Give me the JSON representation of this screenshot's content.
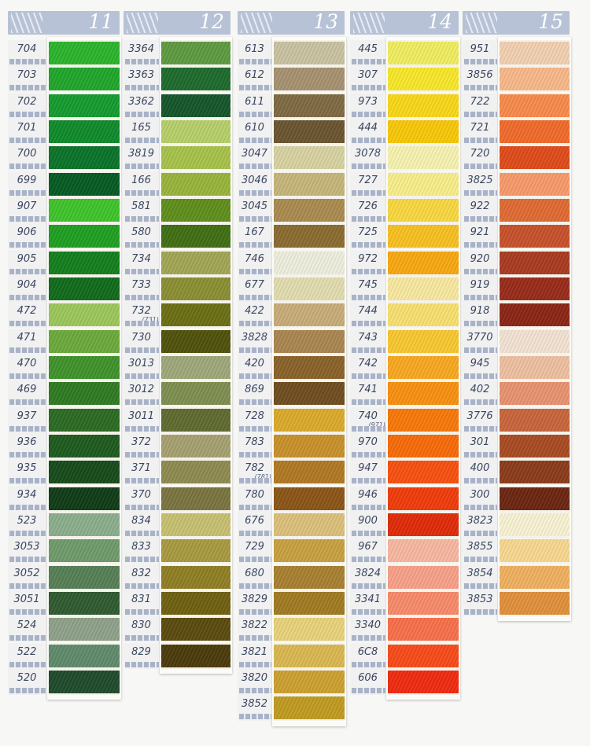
{
  "columns": [
    {
      "header": "11",
      "threads": [
        {
          "code": "704",
          "color": "#2ab52a"
        },
        {
          "code": "703",
          "color": "#1fa62a"
        },
        {
          "code": "702",
          "color": "#149a2e"
        },
        {
          "code": "701",
          "color": "#0f8a2a"
        },
        {
          "code": "700",
          "color": "#0a7328"
        },
        {
          "code": "699",
          "color": "#045a22"
        },
        {
          "code": "907",
          "color": "#3fc42a"
        },
        {
          "code": "906",
          "color": "#1e9f20"
        },
        {
          "code": "905",
          "color": "#127e1c"
        },
        {
          "code": "904",
          "color": "#0f6a1a"
        },
        {
          "code": "472",
          "color": "#9cc75a"
        },
        {
          "code": "471",
          "color": "#6aaa3a"
        },
        {
          "code": "470",
          "color": "#3f922a"
        },
        {
          "code": "469",
          "color": "#2f7a22"
        },
        {
          "code": "937",
          "color": "#2a6a22"
        },
        {
          "code": "936",
          "color": "#1e5a1e"
        },
        {
          "code": "935",
          "color": "#154a1a"
        },
        {
          "code": "934",
          "color": "#0f3c16"
        },
        {
          "code": "523",
          "color": "#8aae8a"
        },
        {
          "code": "3053",
          "color": "#6f9a6a"
        },
        {
          "code": "3052",
          "color": "#557f55"
        },
        {
          "code": "3051",
          "color": "#2f5a30"
        },
        {
          "code": "524",
          "color": "#8ea08a"
        },
        {
          "code": "522",
          "color": "#5f8a6a"
        },
        {
          "code": "520",
          "color": "#1f4a2a"
        }
      ]
    },
    {
      "header": "12",
      "threads": [
        {
          "code": "3364",
          "color": "#5e9a40"
        },
        {
          "code": "3363",
          "color": "#1d6a2c"
        },
        {
          "code": "3362",
          "color": "#14552a"
        },
        {
          "code": "165",
          "color": "#b7cf6a"
        },
        {
          "code": "3819",
          "color": "#a7c24a"
        },
        {
          "code": "166",
          "color": "#98b43a"
        },
        {
          "code": "581",
          "color": "#5e8e1a"
        },
        {
          "code": "580",
          "color": "#3f6e12"
        },
        {
          "code": "734",
          "color": "#a2a654"
        },
        {
          "code": "733",
          "color": "#8a8e32"
        },
        {
          "code": "732",
          "alt": "(731)",
          "color": "#6a6e12"
        },
        {
          "code": "730",
          "color": "#4f520a"
        },
        {
          "code": "3013",
          "color": "#9ea87a"
        },
        {
          "code": "3012",
          "color": "#7e8e50"
        },
        {
          "code": "3011",
          "color": "#5f6a30"
        },
        {
          "code": "372",
          "color": "#a6a070"
        },
        {
          "code": "371",
          "color": "#8e8a50"
        },
        {
          "code": "370",
          "color": "#7a7440"
        },
        {
          "code": "834",
          "color": "#c7c070"
        },
        {
          "code": "833",
          "color": "#a89a40"
        },
        {
          "code": "832",
          "color": "#8f7e22"
        },
        {
          "code": "831",
          "color": "#6e6010"
        },
        {
          "code": "830",
          "color": "#5a4a0e"
        },
        {
          "code": "829",
          "color": "#4a3a0a"
        }
      ]
    },
    {
      "header": "13",
      "threads": [
        {
          "code": "613",
          "color": "#c9c2a2"
        },
        {
          "code": "612",
          "color": "#a69270"
        },
        {
          "code": "611",
          "color": "#7e6a42"
        },
        {
          "code": "610",
          "color": "#6a5430"
        },
        {
          "code": "3047",
          "color": "#d8d2a2"
        },
        {
          "code": "3046",
          "color": "#c6b67a"
        },
        {
          "code": "3045",
          "color": "#aa8a50"
        },
        {
          "code": "167",
          "color": "#8a6a30"
        },
        {
          "code": "746",
          "color": "#eeeedd"
        },
        {
          "code": "677",
          "color": "#e2dcb0"
        },
        {
          "code": "422",
          "color": "#c8ac78"
        },
        {
          "code": "3828",
          "color": "#aa8650"
        },
        {
          "code": "420",
          "color": "#8a6228"
        },
        {
          "code": "869",
          "color": "#6e4c1e"
        },
        {
          "code": "728",
          "color": "#dcaa2a"
        },
        {
          "code": "783",
          "color": "#c8902a"
        },
        {
          "code": "782",
          "alt": "(781)",
          "color": "#b07822"
        },
        {
          "code": "780",
          "color": "#8a5416"
        },
        {
          "code": "676",
          "color": "#dcc07a"
        },
        {
          "code": "729",
          "color": "#c8a040"
        },
        {
          "code": "680",
          "color": "#a88030"
        },
        {
          "code": "3829",
          "color": "#a07a22"
        },
        {
          "code": "3822",
          "color": "#e8d27a"
        },
        {
          "code": "3821",
          "color": "#dab850"
        },
        {
          "code": "3820",
          "color": "#cca030"
        },
        {
          "code": "3852",
          "color": "#c09a20"
        }
      ]
    },
    {
      "header": "14",
      "threads": [
        {
          "code": "445",
          "color": "#f0ee60"
        },
        {
          "code": "307",
          "color": "#f8e82a"
        },
        {
          "code": "973",
          "color": "#f8d818"
        },
        {
          "code": "444",
          "color": "#f8c808"
        },
        {
          "code": "3078",
          "color": "#f6f2b0"
        },
        {
          "code": "727",
          "color": "#f8ee8a"
        },
        {
          "code": "726",
          "color": "#f8d840"
        },
        {
          "code": "725",
          "color": "#f8c020"
        },
        {
          "code": "972",
          "color": "#f8a810"
        },
        {
          "code": "745",
          "color": "#f8e8a0"
        },
        {
          "code": "744",
          "color": "#f8e070"
        },
        {
          "code": "743",
          "color": "#f8c830"
        },
        {
          "code": "742",
          "color": "#f8a820"
        },
        {
          "code": "741",
          "color": "#f89010"
        },
        {
          "code": "740",
          "alt": "(971)",
          "color": "#f87808"
        },
        {
          "code": "970",
          "color": "#f86a08"
        },
        {
          "code": "947",
          "color": "#f85010"
        },
        {
          "code": "946",
          "color": "#f03c0a"
        },
        {
          "code": "900",
          "color": "#e02a08"
        },
        {
          "code": "967",
          "color": "#f8b8a0"
        },
        {
          "code": "3824",
          "color": "#f8a088"
        },
        {
          "code": "3341",
          "color": "#f88a6a"
        },
        {
          "code": "3340",
          "color": "#f8704a"
        },
        {
          "code": "6C8",
          "color": "#f84a1a"
        },
        {
          "code": "606",
          "color": "#f02a10"
        }
      ]
    },
    {
      "header": "15",
      "threads": [
        {
          "code": "951",
          "color": "#f2d0b0"
        },
        {
          "code": "3856",
          "color": "#f8b88a"
        },
        {
          "code": "722",
          "color": "#f88a4a"
        },
        {
          "code": "721",
          "color": "#f06a2a"
        },
        {
          "code": "720",
          "color": "#e04a1a"
        },
        {
          "code": "3825",
          "color": "#f89a6a"
        },
        {
          "code": "922",
          "color": "#e06a32"
        },
        {
          "code": "921",
          "color": "#c8502a"
        },
        {
          "code": "920",
          "color": "#a83a20"
        },
        {
          "code": "919",
          "color": "#982a18"
        },
        {
          "code": "918",
          "color": "#8a2414"
        },
        {
          "code": "3770",
          "color": "#f2e2d2"
        },
        {
          "code": "945",
          "color": "#eebfa0"
        },
        {
          "code": "402",
          "color": "#e89270"
        },
        {
          "code": "3776",
          "color": "#c8643a"
        },
        {
          "code": "301",
          "color": "#a84a22"
        },
        {
          "code": "400",
          "color": "#8a3a1a"
        },
        {
          "code": "300",
          "color": "#6a2410"
        },
        {
          "code": "3823",
          "color": "#f8f2d2"
        },
        {
          "code": "3855",
          "color": "#f8d890"
        },
        {
          "code": "3854",
          "color": "#f0b060"
        },
        {
          "code": "3853",
          "color": "#e0903a"
        }
      ]
    }
  ]
}
